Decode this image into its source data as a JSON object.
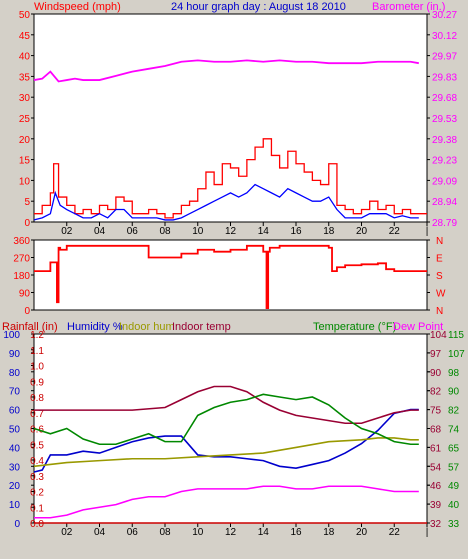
{
  "header": {
    "left_label": "Windspeed (mph)",
    "center_label": "24 hour graph day : August 18 2010",
    "right_label": "Barometer (in.)"
  },
  "bottom_header": {
    "rainfall": "Rainfall (in)",
    "humidity": "Humidity %",
    "indoor_hum": "Indoor hum",
    "indoor_temp": "Indoor temp",
    "temperature": "Temperature (°F)",
    "dew_point": "Dew Point"
  },
  "colors": {
    "background": "#d4d0c8",
    "windspeed": "#ff0000",
    "wind_avg": "#0000ff",
    "barometer": "#ff00ff",
    "wind_dir": "#ff0000",
    "rainfall": "#cc0000",
    "humidity": "#0000cc",
    "indoor_hum": "#999900",
    "indoor_temp": "#990033",
    "temperature": "#008800",
    "dew_point": "#ff00ff"
  },
  "chart_data": [
    {
      "type": "line",
      "title": "24 hour graph day : August 18 2010",
      "x_ticks": [
        "02",
        "04",
        "06",
        "08",
        "10",
        "12",
        "14",
        "16",
        "18",
        "20",
        "22",
        "|"
      ],
      "x_range": [
        0,
        24
      ],
      "y_left": {
        "label": "Windspeed (mph)",
        "ticks": [
          "0",
          "5",
          "10",
          "15",
          "20",
          "25",
          "30",
          "35",
          "40",
          "45",
          "50"
        ],
        "range": [
          0,
          50
        ]
      },
      "y_right": {
        "label": "Barometer (in.)",
        "ticks": [
          "28.79",
          "28.94",
          "29.09",
          "29.23",
          "29.38",
          "29.53",
          "29.68",
          "29.83",
          "29.97",
          "30.12",
          "30.27"
        ],
        "range": [
          28.79,
          30.27
        ]
      },
      "series": [
        {
          "name": "Windspeed (mph)",
          "axis": "left",
          "step": true,
          "x": [
            0,
            0.5,
            1,
            1.2,
            1.5,
            2,
            2.5,
            3,
            3.5,
            4,
            4.5,
            5,
            5.5,
            6,
            6.5,
            7,
            7.5,
            8,
            8.5,
            9,
            9.5,
            10,
            10.5,
            11,
            11.5,
            12,
            12.5,
            13,
            13.5,
            14,
            14.5,
            15,
            15.5,
            16,
            16.5,
            17,
            17.5,
            18,
            18.5,
            19,
            19.5,
            20,
            20.5,
            21,
            21.5,
            22,
            22.5,
            23,
            23.5
          ],
          "y": [
            2,
            4,
            7,
            14,
            6,
            4,
            2,
            3,
            2,
            4,
            3,
            6,
            5,
            2,
            2,
            3,
            2,
            1,
            2,
            4,
            5,
            8,
            12,
            9,
            14,
            13,
            11,
            15,
            18,
            20,
            16,
            13,
            17,
            14,
            12,
            10,
            9,
            14,
            4,
            3,
            2,
            3,
            5,
            3,
            4,
            2,
            3,
            2,
            2
          ]
        },
        {
          "name": "Average wind",
          "axis": "left",
          "step": false,
          "x": [
            0,
            0.5,
            1,
            1.3,
            1.6,
            2,
            2.5,
            3,
            3.5,
            4,
            4.5,
            5,
            5.5,
            6,
            6.5,
            7,
            7.5,
            8,
            8.5,
            9,
            9.5,
            10,
            10.5,
            11,
            11.5,
            12,
            12.5,
            13,
            13.5,
            14,
            14.5,
            15,
            15.5,
            16,
            16.5,
            17,
            17.5,
            18,
            18.5,
            19,
            19.5,
            20,
            20.5,
            21,
            21.5,
            22,
            22.5,
            23,
            23.5
          ],
          "y": [
            0.5,
            1,
            2,
            7,
            4,
            3,
            2,
            1,
            1,
            2,
            1,
            3,
            3,
            1,
            1,
            1,
            1,
            0.5,
            0.5,
            1,
            2,
            3,
            4,
            5,
            6,
            7,
            6,
            7,
            9,
            8,
            7,
            6,
            8,
            7,
            6,
            5,
            5,
            6,
            3,
            1,
            1,
            1,
            2,
            2,
            2,
            1,
            1.5,
            1,
            1
          ]
        },
        {
          "name": "Barometer (in.)",
          "axis": "right",
          "step": false,
          "x": [
            0,
            0.5,
            1,
            1.5,
            2,
            2.5,
            3,
            4,
            5,
            6,
            7,
            8,
            9,
            10,
            11,
            12,
            13,
            14,
            15,
            16,
            17,
            18,
            19,
            20,
            21,
            22,
            23,
            23.5
          ],
          "y": [
            29.8,
            29.81,
            29.86,
            29.79,
            29.8,
            29.81,
            29.8,
            29.8,
            29.83,
            29.86,
            29.88,
            29.9,
            29.93,
            29.94,
            29.93,
            29.93,
            29.94,
            29.93,
            29.94,
            29.93,
            29.93,
            29.92,
            29.92,
            29.92,
            29.93,
            29.93,
            29.93,
            29.92
          ]
        }
      ]
    },
    {
      "type": "line",
      "y_left": {
        "ticks": [
          "0",
          "90",
          "180",
          "270",
          "360"
        ],
        "range": [
          0,
          360
        ]
      },
      "y_right": {
        "ticks": [
          "N",
          "W",
          "S",
          "E",
          "N"
        ]
      },
      "series": [
        {
          "name": "Wind direction",
          "axis": "left",
          "step": true,
          "x": [
            0,
            1,
            1.4,
            1.5,
            1.6,
            2,
            3,
            4,
            5,
            6,
            7,
            8,
            9,
            10,
            11,
            12,
            13,
            14,
            14.2,
            14.3,
            14.4,
            15,
            16,
            17,
            18,
            18.2,
            18.5,
            19,
            20,
            21,
            21.5,
            22,
            23,
            23.5
          ],
          "y": [
            200,
            245,
            40,
            320,
            310,
            330,
            330,
            330,
            330,
            330,
            270,
            270,
            290,
            310,
            300,
            310,
            330,
            300,
            10,
            300,
            320,
            330,
            330,
            330,
            320,
            200,
            220,
            230,
            235,
            240,
            210,
            200,
            200,
            200
          ]
        }
      ]
    },
    {
      "type": "line",
      "x_ticks": [
        "02",
        "04",
        "06",
        "08",
        "10",
        "12",
        "14",
        "16",
        "18",
        "20",
        "22",
        "|"
      ],
      "x_range": [
        0,
        24
      ],
      "y_axes": {
        "rainfall": {
          "label": "Rainfall (in)",
          "ticks": [
            "0.0",
            "0.1",
            "0.2",
            "0.3",
            "0.4",
            "0.5",
            "0.6",
            "0.7",
            "0.8",
            "0.9",
            "1.0",
            "1.1",
            "1.2"
          ],
          "range": [
            0,
            1.2
          ]
        },
        "humidity": {
          "label": "Humidity %",
          "ticks": [
            "0",
            "10",
            "20",
            "30",
            "40",
            "50",
            "60",
            "70",
            "80",
            "90",
            "100"
          ],
          "range": [
            0,
            100
          ]
        },
        "temperature_a": {
          "ticks": [
            "32",
            "39",
            "46",
            "54",
            "61",
            "68",
            "75",
            "82",
            "90",
            "97",
            "104"
          ],
          "range": [
            32,
            104
          ]
        },
        "temperature_b": {
          "ticks": [
            "33",
            "40",
            "49",
            "57",
            "65",
            "74",
            "82",
            "90",
            "98",
            "107",
            "115"
          ],
          "range": [
            33,
            115
          ]
        }
      },
      "series": [
        {
          "name": "Rainfall (in)",
          "axis": "rainfall",
          "x": [
            0,
            24
          ],
          "y": [
            0,
            0
          ]
        },
        {
          "name": "Humidity %",
          "axis": "humidity",
          "x": [
            0,
            0.5,
            1,
            2,
            3,
            4,
            5,
            6,
            7,
            8,
            9,
            10,
            11,
            12,
            13,
            14,
            15,
            16,
            17,
            18,
            19,
            20,
            21,
            22,
            23,
            23.5
          ],
          "y": [
            27,
            28,
            36,
            36,
            38,
            37,
            40,
            43,
            45,
            46,
            46,
            36,
            35,
            35,
            34,
            33,
            30,
            29,
            31,
            33,
            37,
            42,
            49,
            58,
            60,
            60
          ]
        },
        {
          "name": "Indoor hum",
          "axis": "humidity",
          "x": [
            0,
            1,
            2,
            4,
            6,
            8,
            10,
            12,
            14,
            16,
            18,
            20,
            21,
            22,
            23,
            23.5
          ],
          "y": [
            30,
            31,
            32,
            33,
            34,
            34,
            35,
            36,
            37,
            40,
            43,
            44,
            45,
            45,
            44,
            44
          ]
        },
        {
          "name": "Indoor temp",
          "axis": "temperature_a",
          "x": [
            0,
            2,
            4,
            6,
            8,
            9,
            10,
            11,
            12,
            13,
            14,
            15,
            16,
            17,
            18,
            19,
            20,
            21,
            22,
            23,
            23.5
          ],
          "y": [
            75,
            75,
            75,
            75,
            76,
            79,
            82,
            84,
            84,
            82,
            78,
            75,
            73,
            72,
            71,
            70,
            70,
            72,
            74,
            75,
            75
          ]
        },
        {
          "name": "Temperature (°F)",
          "axis": "temperature_a",
          "x": [
            0,
            1,
            2,
            3,
            4,
            5,
            6,
            7,
            8,
            9,
            10,
            11,
            12,
            13,
            14,
            15,
            16,
            17,
            18,
            19,
            20,
            21,
            22,
            23,
            23.5
          ],
          "y": [
            68,
            66,
            68,
            64,
            62,
            62,
            64,
            66,
            63,
            63,
            73,
            76,
            78,
            79,
            81,
            80,
            79,
            80,
            77,
            72,
            68,
            66,
            63,
            62,
            62
          ]
        },
        {
          "name": "Dew Point",
          "axis": "temperature_a",
          "x": [
            0,
            1,
            2,
            3,
            4,
            5,
            6,
            7,
            8,
            9,
            10,
            11,
            12,
            13,
            14,
            15,
            16,
            17,
            18,
            19,
            20,
            21,
            22,
            23,
            23.5
          ],
          "y": [
            34,
            34,
            35,
            37,
            38,
            39,
            41,
            42,
            42,
            44,
            45,
            45,
            45,
            45,
            46,
            46,
            45,
            45,
            46,
            46,
            46,
            45,
            44,
            44,
            44
          ]
        }
      ]
    }
  ]
}
